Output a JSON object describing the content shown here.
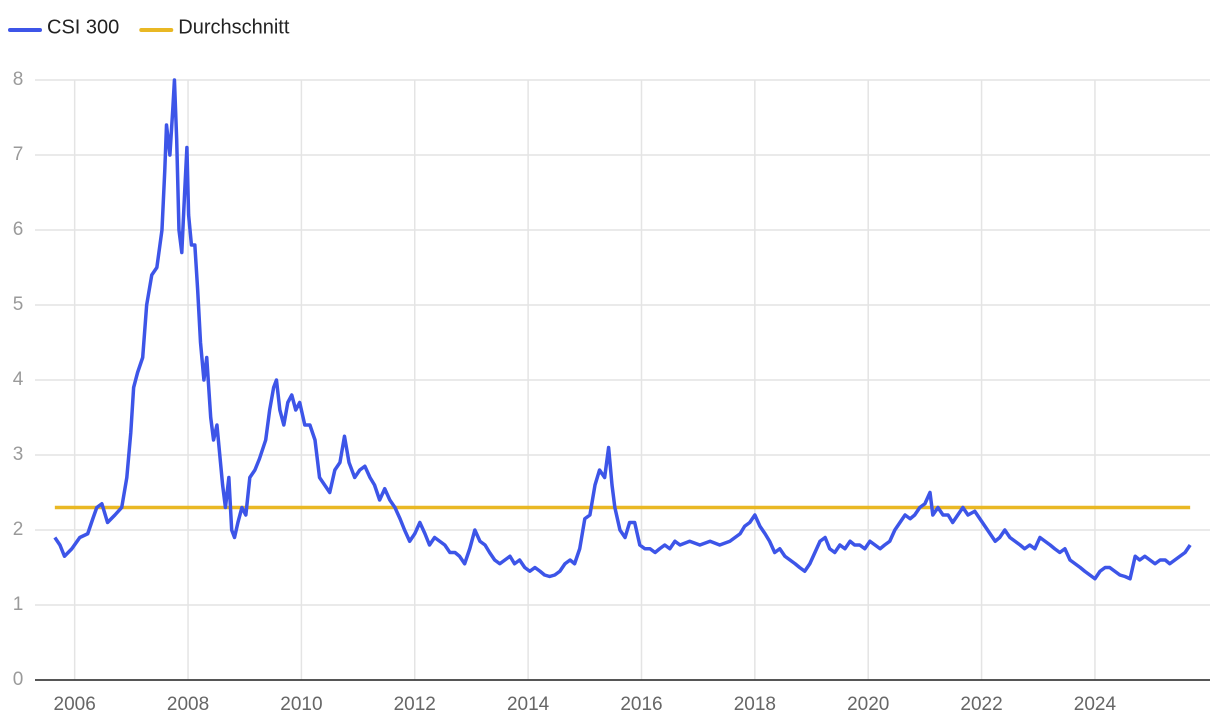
{
  "chart_data": {
    "type": "line",
    "series": [
      {
        "name": "CSI 300",
        "color": "#3d55e8",
        "x": [
          2005.65,
          2005.74,
          2005.82,
          2005.95,
          2006.09,
          2006.23,
          2006.32,
          2006.39,
          2006.48,
          2006.58,
          2006.71,
          2006.83,
          2006.92,
          2006.99,
          2007.04,
          2007.11,
          2007.2,
          2007.27,
          2007.36,
          2007.45,
          2007.54,
          2007.59,
          2007.62,
          2007.68,
          2007.73,
          2007.76,
          2007.8,
          2007.84,
          2007.89,
          2007.94,
          2007.98,
          2008.01,
          2008.06,
          2008.12,
          2008.17,
          2008.22,
          2008.28,
          2008.33,
          2008.4,
          2008.45,
          2008.51,
          2008.56,
          2008.61,
          2008.66,
          2008.72,
          2008.77,
          2008.82,
          2008.88,
          2008.95,
          2009.02,
          2009.09,
          2009.18,
          2009.26,
          2009.37,
          2009.44,
          2009.51,
          2009.56,
          2009.62,
          2009.69,
          2009.76,
          2009.83,
          2009.9,
          2009.97,
          2010.06,
          2010.15,
          2010.24,
          2010.32,
          2010.41,
          2010.5,
          2010.59,
          2010.68,
          2010.76,
          2010.84,
          2010.94,
          2011.03,
          2011.12,
          2011.21,
          2011.29,
          2011.38,
          2011.47,
          2011.56,
          2011.65,
          2011.74,
          2011.82,
          2011.91,
          2012.0,
          2012.09,
          2012.18,
          2012.26,
          2012.35,
          2012.44,
          2012.53,
          2012.62,
          2012.71,
          2012.79,
          2012.88,
          2012.97,
          2013.06,
          2013.15,
          2013.24,
          2013.32,
          2013.41,
          2013.5,
          2013.59,
          2013.68,
          2013.76,
          2013.85,
          2013.94,
          2014.03,
          2014.12,
          2014.21,
          2014.29,
          2014.38,
          2014.47,
          2014.56,
          2014.65,
          2014.74,
          2014.82,
          2014.91,
          2015.0,
          2015.09,
          2015.18,
          2015.26,
          2015.35,
          2015.42,
          2015.48,
          2015.53,
          2015.62,
          2015.71,
          2015.79,
          2015.88,
          2015.97,
          2016.06,
          2016.15,
          2016.24,
          2016.32,
          2016.41,
          2016.5,
          2016.59,
          2016.68,
          2016.85,
          2017.03,
          2017.21,
          2017.38,
          2017.56,
          2017.74,
          2017.82,
          2017.91,
          2018.0,
          2018.09,
          2018.18,
          2018.26,
          2018.35,
          2018.44,
          2018.53,
          2018.62,
          2018.71,
          2018.79,
          2018.88,
          2018.97,
          2019.06,
          2019.15,
          2019.24,
          2019.32,
          2019.41,
          2019.5,
          2019.59,
          2019.68,
          2019.76,
          2019.85,
          2019.94,
          2020.03,
          2020.12,
          2020.21,
          2020.29,
          2020.38,
          2020.47,
          2020.56,
          2020.65,
          2020.74,
          2020.82,
          2020.91,
          2021.0,
          2021.09,
          2021.14,
          2021.23,
          2021.32,
          2021.41,
          2021.49,
          2021.58,
          2021.67,
          2021.76,
          2021.88,
          2021.97,
          2022.06,
          2022.15,
          2022.24,
          2022.32,
          2022.41,
          2022.5,
          2022.59,
          2022.68,
          2022.76,
          2022.85,
          2022.94,
          2023.03,
          2023.12,
          2023.21,
          2023.29,
          2023.38,
          2023.47,
          2023.56,
          2023.65,
          2023.74,
          2023.82,
          2023.91,
          2024.0,
          2024.09,
          2024.18,
          2024.26,
          2024.35,
          2024.44,
          2024.53,
          2024.62,
          2024.71,
          2024.79,
          2024.88,
          2024.97,
          2025.06,
          2025.15,
          2025.24,
          2025.32,
          2025.41,
          2025.5,
          2025.59,
          2025.68
        ],
        "values": [
          1.9,
          1.8,
          1.65,
          1.75,
          1.9,
          1.95,
          2.15,
          2.3,
          2.35,
          2.1,
          2.2,
          2.3,
          2.7,
          3.3,
          3.9,
          4.1,
          4.3,
          5.0,
          5.4,
          5.5,
          6.0,
          6.8,
          7.4,
          7.0,
          7.6,
          8.0,
          7.2,
          6.0,
          5.7,
          6.5,
          7.1,
          6.2,
          5.8,
          5.8,
          5.2,
          4.5,
          4.0,
          4.3,
          3.5,
          3.2,
          3.4,
          3.0,
          2.6,
          2.3,
          2.7,
          2.0,
          1.9,
          2.1,
          2.3,
          2.2,
          2.7,
          2.8,
          2.95,
          3.2,
          3.6,
          3.9,
          4.0,
          3.6,
          3.4,
          3.7,
          3.8,
          3.6,
          3.7,
          3.4,
          3.4,
          3.2,
          2.7,
          2.6,
          2.5,
          2.8,
          2.9,
          3.25,
          2.9,
          2.7,
          2.8,
          2.85,
          2.7,
          2.6,
          2.4,
          2.55,
          2.4,
          2.3,
          2.15,
          2.0,
          1.85,
          1.95,
          2.1,
          1.95,
          1.8,
          1.9,
          1.85,
          1.8,
          1.7,
          1.7,
          1.65,
          1.55,
          1.75,
          2.0,
          1.85,
          1.8,
          1.7,
          1.6,
          1.55,
          1.6,
          1.65,
          1.55,
          1.6,
          1.5,
          1.45,
          1.5,
          1.45,
          1.4,
          1.38,
          1.4,
          1.45,
          1.55,
          1.6,
          1.55,
          1.75,
          2.15,
          2.2,
          2.6,
          2.8,
          2.7,
          3.1,
          2.6,
          2.3,
          2.0,
          1.9,
          2.1,
          2.1,
          1.8,
          1.75,
          1.75,
          1.7,
          1.75,
          1.8,
          1.75,
          1.85,
          1.8,
          1.85,
          1.8,
          1.85,
          1.8,
          1.85,
          1.95,
          2.05,
          2.1,
          2.2,
          2.05,
          1.95,
          1.85,
          1.7,
          1.75,
          1.65,
          1.6,
          1.55,
          1.5,
          1.45,
          1.55,
          1.7,
          1.85,
          1.9,
          1.75,
          1.7,
          1.8,
          1.75,
          1.85,
          1.8,
          1.8,
          1.75,
          1.85,
          1.8,
          1.75,
          1.8,
          1.85,
          2.0,
          2.1,
          2.2,
          2.15,
          2.2,
          2.3,
          2.35,
          2.5,
          2.2,
          2.3,
          2.2,
          2.2,
          2.1,
          2.2,
          2.3,
          2.2,
          2.25,
          2.15,
          2.05,
          1.95,
          1.85,
          1.9,
          2.0,
          1.9,
          1.85,
          1.8,
          1.75,
          1.8,
          1.75,
          1.9,
          1.85,
          1.8,
          1.75,
          1.7,
          1.75,
          1.6,
          1.55,
          1.5,
          1.45,
          1.4,
          1.35,
          1.45,
          1.5,
          1.5,
          1.45,
          1.4,
          1.38,
          1.35,
          1.65,
          1.6,
          1.65,
          1.6,
          1.55,
          1.6,
          1.6,
          1.55,
          1.6,
          1.65,
          1.7,
          1.8
        ]
      },
      {
        "name": "Durchschnitt",
        "color": "#e9b824",
        "x": [
          2005.65,
          2025.68
        ],
        "values": [
          2.3,
          2.3
        ]
      }
    ],
    "xlim": [
      2005.3,
      2026.03
    ],
    "xticks": [
      2006,
      2008,
      2010,
      2012,
      2014,
      2016,
      2018,
      2020,
      2022,
      2024
    ],
    "ylim": [
      0,
      8
    ],
    "yticks": [
      0,
      1,
      2,
      3,
      4,
      5,
      6,
      7,
      8
    ],
    "grid": true,
    "legend": "top-left"
  }
}
